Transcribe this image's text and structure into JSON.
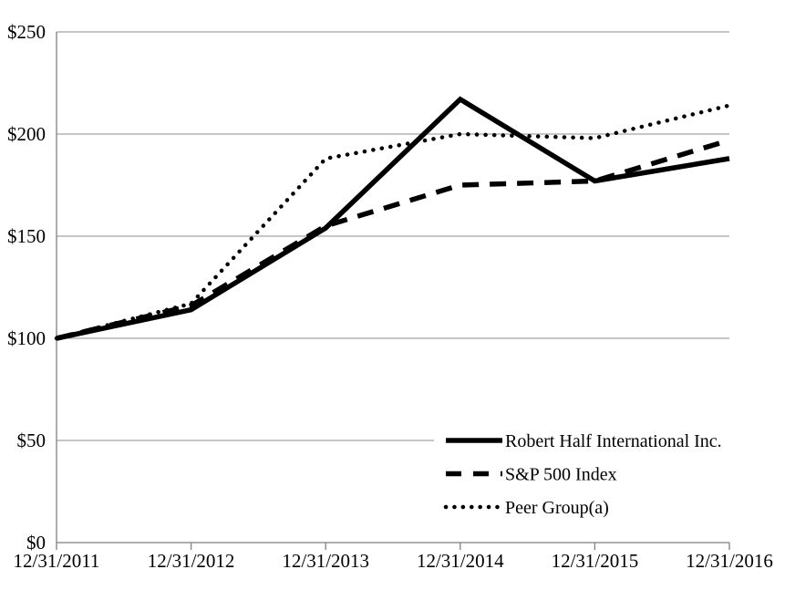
{
  "chart_data": {
    "type": "line",
    "title": "",
    "categories": [
      "12/31/2011",
      "12/31/2012",
      "12/31/2013",
      "12/31/2014",
      "12/31/2015",
      "12/31/2016"
    ],
    "series": [
      {
        "name": "Robert Half International Inc.",
        "style": "solid",
        "values": [
          100,
          114,
          154,
          217,
          177,
          188
        ]
      },
      {
        "name": "S&P 500 Index",
        "style": "dashed",
        "values": [
          100,
          116,
          155,
          175,
          177,
          197
        ]
      },
      {
        "name": "Peer Group(a)",
        "style": "dotted",
        "values": [
          100,
          117,
          188,
          200,
          198,
          214
        ]
      }
    ],
    "y_ticks": [
      {
        "value": 0,
        "label": "$0"
      },
      {
        "value": 50,
        "label": "$50"
      },
      {
        "value": 100,
        "label": "$100"
      },
      {
        "value": 150,
        "label": "$150"
      },
      {
        "value": 200,
        "label": "$200"
      },
      {
        "value": 250,
        "label": "$250"
      }
    ],
    "ylim": [
      0,
      250
    ],
    "xlabel": "",
    "ylabel": "",
    "grid": "horizontal",
    "legend_position": "inside-bottom-right",
    "line_color": "#000000",
    "grid_color": "#8c8c8c",
    "axis_color": "#7f7f7f",
    "background_color": "#ffffff"
  }
}
